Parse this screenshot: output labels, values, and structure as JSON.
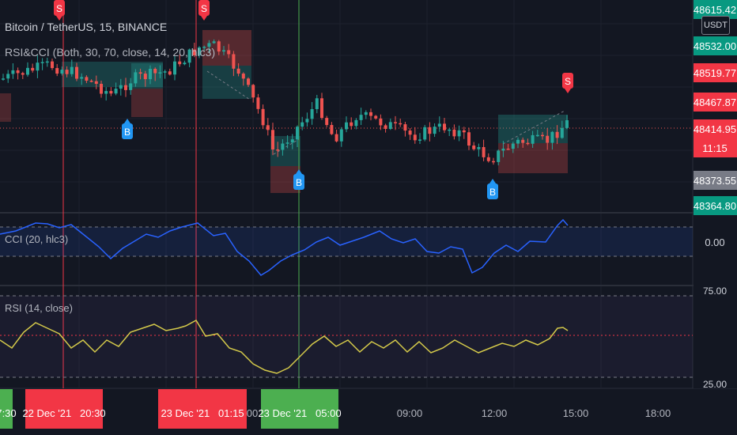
{
  "header": {
    "symbol_title": "Bitcoin / TetherUS, 15, BINANCE",
    "indicator_label": "RSI&CCI (Both, 30, 70, close, 14, 20, hlc3)",
    "currency_button": "USDT"
  },
  "panes": {
    "cci_label": "CCI (20, hlc3)",
    "rsi_label": "RSI (14, close)"
  },
  "price_axis": {
    "labels": [
      {
        "text": "48615.42",
        "kind": "green"
      },
      {
        "text": "48532.00",
        "kind": "green"
      },
      {
        "text": "48519.77",
        "kind": "red"
      },
      {
        "text": "48467.87",
        "kind": "red"
      },
      {
        "text": "48414.95",
        "kind": "red"
      },
      {
        "text": "11:15",
        "kind": "red"
      },
      {
        "text": "48373.55",
        "kind": "gray"
      },
      {
        "text": "48364.80",
        "kind": "green"
      }
    ],
    "cci_tick": "0.00",
    "rsi_top_tick": "75.00",
    "rsi_bottom_tick": "25.00"
  },
  "time_axis": {
    "ticks": [
      "03:00",
      "09:00",
      "12:00",
      "15:00",
      "18:00"
    ],
    "markers": [
      {
        "text": "7:30",
        "color": "#4caf50"
      },
      {
        "text": "22 Dec '21   20:30",
        "color": "#f23645"
      },
      {
        "text": "23 Dec '21   01:15",
        "color": "#f23645"
      },
      {
        "text": "23 Dec '21   05:00",
        "color": "#4caf50"
      }
    ]
  },
  "signals": {
    "buy": "B",
    "sell": "S"
  },
  "colors": {
    "background": "#131722",
    "up": "#26a69a",
    "down": "#ef5350",
    "cci_line": "#2962ff",
    "rsi_line": "#d4c94a",
    "buy_signal": "#2196f3",
    "sell_signal": "#f23645"
  }
}
